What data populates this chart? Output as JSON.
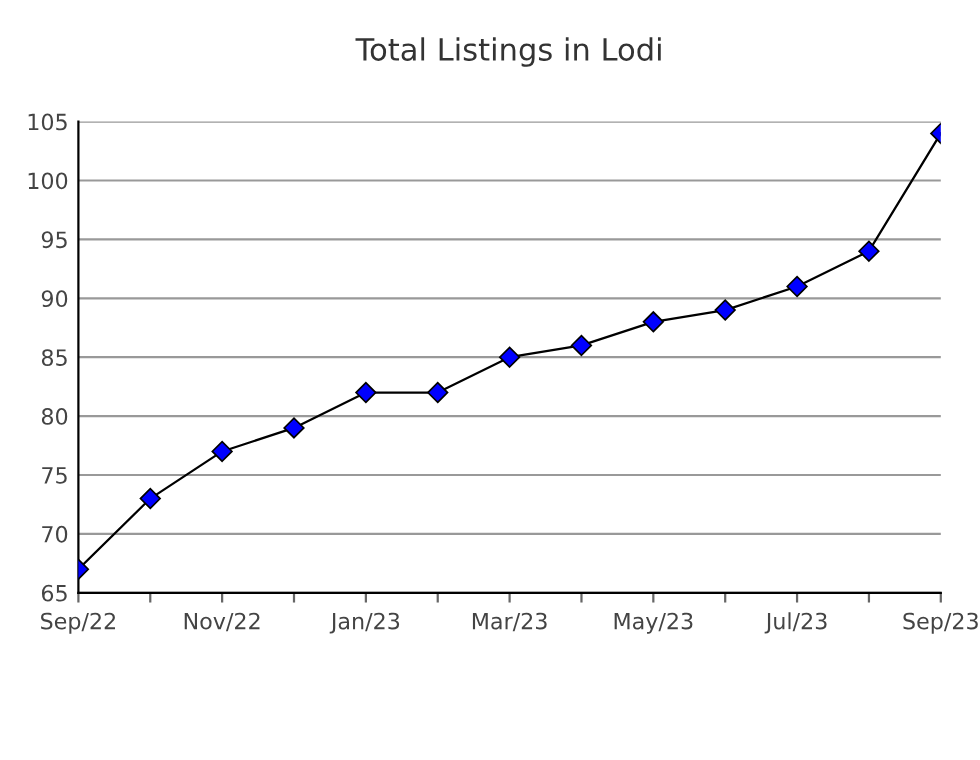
{
  "chart_data": {
    "type": "line",
    "title": "Total Listings in Lodi",
    "categories": [
      "Sep/22",
      null,
      "Nov/22",
      null,
      "Jan/23",
      null,
      "Mar/23",
      null,
      "May/23",
      null,
      "Jul/23",
      null,
      "Sep/23"
    ],
    "series": [
      {
        "color": "#0000ff",
        "values": [
          67,
          73,
          77,
          79,
          82,
          82,
          85,
          86,
          88,
          89,
          91,
          94,
          104
        ]
      }
    ],
    "ylim": [
      65,
      105
    ],
    "yticks": [
      65,
      70,
      75,
      80,
      85,
      90,
      95,
      100,
      105
    ],
    "grid": "y",
    "marker": "diamond",
    "line_style": "solid"
  }
}
